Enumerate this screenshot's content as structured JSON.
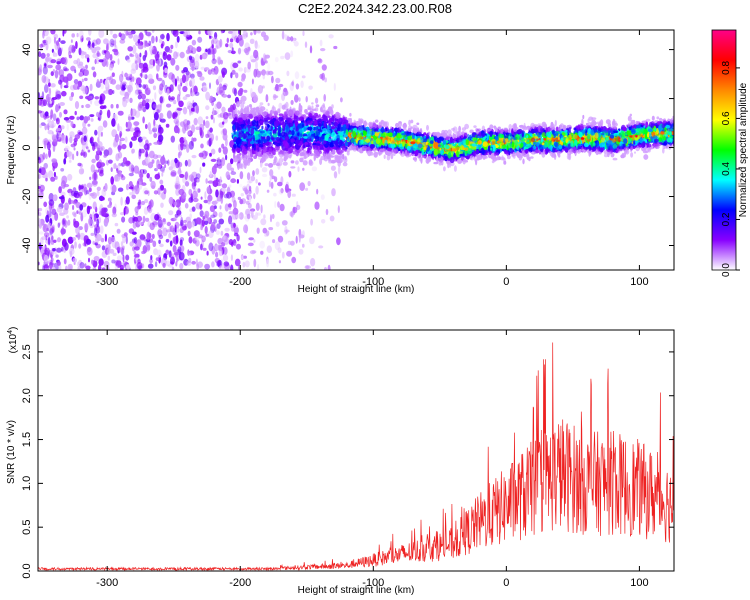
{
  "title": "C2E2.2024.342.23.00.R08",
  "chart_data": [
    {
      "type": "heatmap",
      "xlabel": "Height of straight line (km)",
      "ylabel": "Frequency (Hz)",
      "xlim": [
        -352,
        126
      ],
      "ylim": [
        -50,
        48
      ],
      "xticks": [
        "-300",
        "-200",
        "-100",
        "0",
        "100"
      ],
      "xtick_values": [
        -300,
        -200,
        -100,
        0,
        100
      ],
      "yticks": [
        "-40",
        "-20",
        "0",
        "20",
        "40"
      ],
      "ytick_values": [
        -40,
        -20,
        0,
        20,
        40
      ],
      "colorbar": {
        "label": "Normalized spectral amplitude",
        "range": [
          0,
          0.95
        ],
        "ticks": [
          "0.0",
          "0.2",
          "0.4",
          "0.6",
          "0.8"
        ],
        "tick_values": [
          0.0,
          0.2,
          0.4,
          0.6,
          0.8
        ],
        "colors": [
          "#ffffff",
          "#8800ff",
          "#0000ff",
          "#00ffff",
          "#00ff00",
          "#ffff00",
          "#ff8800",
          "#ff0000",
          "#ff0088"
        ]
      },
      "signal_band_center_hz": {
        "x": [
          -200,
          -170,
          -150,
          -120,
          -100,
          -80,
          -60,
          -40,
          -20,
          0,
          20,
          40,
          60,
          80,
          100,
          126
        ],
        "y": [
          5,
          6,
          6,
          5,
          4,
          3,
          1,
          -1,
          2,
          2,
          3,
          3,
          4,
          3,
          5,
          6
        ]
      },
      "noise_region_x": [
        -352,
        -200
      ]
    },
    {
      "type": "line",
      "xlabel": "Height of straight line (km)",
      "ylabel": "SNR (10 * v/v)",
      "multiplier": "(x10",
      "multiplier_exp": "4",
      "multiplier_close": ")",
      "xlim": [
        -352,
        126
      ],
      "ylim": [
        0,
        2.75
      ],
      "xticks": [
        "-300",
        "-200",
        "-100",
        "0",
        "100"
      ],
      "xtick_values": [
        -300,
        -200,
        -100,
        0,
        100
      ],
      "yticks": [
        "0.0",
        "0.5",
        "1.0",
        "1.5",
        "2.0",
        "2.5"
      ],
      "ytick_values": [
        0.0,
        0.5,
        1.0,
        1.5,
        2.0,
        2.5
      ],
      "color": "#ee2222",
      "envelope": {
        "x": [
          -352,
          -250,
          -170,
          -120,
          -100,
          -80,
          -60,
          -40,
          -20,
          0,
          20,
          40,
          60,
          80,
          100,
          126
        ],
        "y": [
          0.02,
          0.03,
          0.05,
          0.1,
          0.2,
          0.3,
          0.4,
          0.5,
          0.9,
          1.2,
          1.5,
          1.8,
          1.6,
          1.6,
          1.5,
          1.2
        ]
      }
    }
  ]
}
